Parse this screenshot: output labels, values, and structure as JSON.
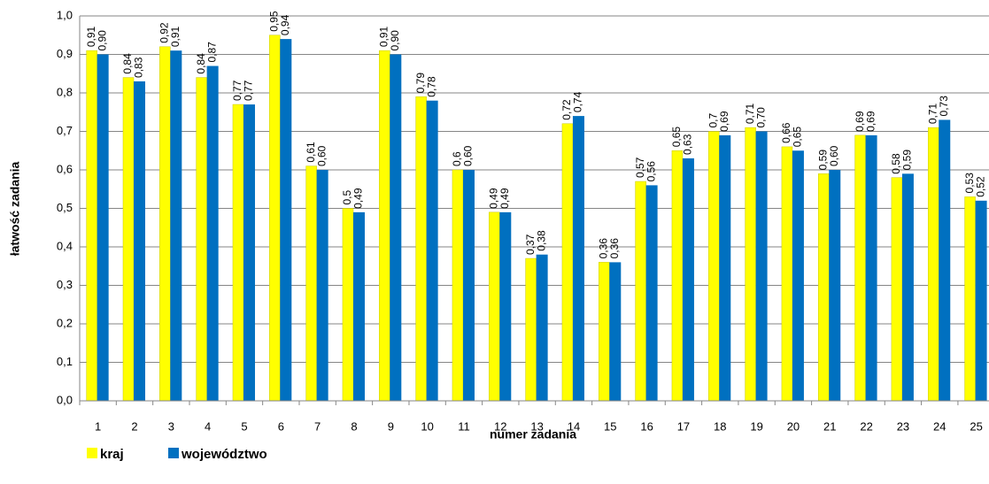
{
  "chart_data": {
    "type": "bar",
    "xlabel": "numer zadania",
    "ylabel": "łatwość zadania",
    "categories": [
      "1",
      "2",
      "3",
      "4",
      "5",
      "6",
      "7",
      "8",
      "9",
      "10",
      "11",
      "12",
      "13",
      "14",
      "15",
      "16",
      "17",
      "18",
      "19",
      "20",
      "21",
      "22",
      "23",
      "24",
      "25"
    ],
    "series": [
      {
        "name": "kraj",
        "color": "#ffff00",
        "values": [
          0.91,
          0.84,
          0.92,
          0.84,
          0.77,
          0.95,
          0.61,
          0.5,
          0.91,
          0.79,
          0.6,
          0.49,
          0.37,
          0.72,
          0.36,
          0.57,
          0.65,
          0.7,
          0.71,
          0.66,
          0.59,
          0.69,
          0.58,
          0.71,
          0.53
        ],
        "value_labels": [
          "0,91",
          "0,84",
          "0,92",
          "0,84",
          "0,77",
          "0,95",
          "0,61",
          "0,5",
          "0,91",
          "0,79",
          "0,6",
          "0,49",
          "0,37",
          "0,72",
          "0,36",
          "0,57",
          "0,65",
          "0,7",
          "0,71",
          "0,66",
          "0,59",
          "0,69",
          "0,58",
          "0,71",
          "0,53"
        ]
      },
      {
        "name": "województwo",
        "color": "#0070c0",
        "values": [
          0.9,
          0.83,
          0.91,
          0.87,
          0.77,
          0.94,
          0.6,
          0.49,
          0.9,
          0.78,
          0.6,
          0.49,
          0.38,
          0.74,
          0.36,
          0.56,
          0.63,
          0.69,
          0.7,
          0.65,
          0.6,
          0.69,
          0.59,
          0.73,
          0.52
        ],
        "value_labels": [
          "0,90",
          "0,83",
          "0,91",
          "0,87",
          "0,77",
          "0,94",
          "0,60",
          "0,49",
          "0,90",
          "0,78",
          "0,60",
          "0,49",
          "0,38",
          "0,74",
          "0,36",
          "0,56",
          "0,63",
          "0,69",
          "0,70",
          "0,65",
          "0,60",
          "0,69",
          "0,59",
          "0,73",
          "0,52"
        ]
      }
    ],
    "ylim": [
      0,
      1
    ],
    "yticks": [
      {
        "value": 0,
        "label": "0,0"
      },
      {
        "value": 0.1,
        "label": "0,1"
      },
      {
        "value": 0.2,
        "label": "0,2"
      },
      {
        "value": 0.3,
        "label": "0,3"
      },
      {
        "value": 0.4,
        "label": "0,4"
      },
      {
        "value": 0.5,
        "label": "0,5"
      },
      {
        "value": 0.6,
        "label": "0,6"
      },
      {
        "value": 0.7,
        "label": "0,7"
      },
      {
        "value": 0.8,
        "label": "0,8"
      },
      {
        "value": 0.9,
        "label": "0,9"
      },
      {
        "value": 1,
        "label": "1,0"
      }
    ],
    "grid": true,
    "legend": "bottom-left"
  }
}
